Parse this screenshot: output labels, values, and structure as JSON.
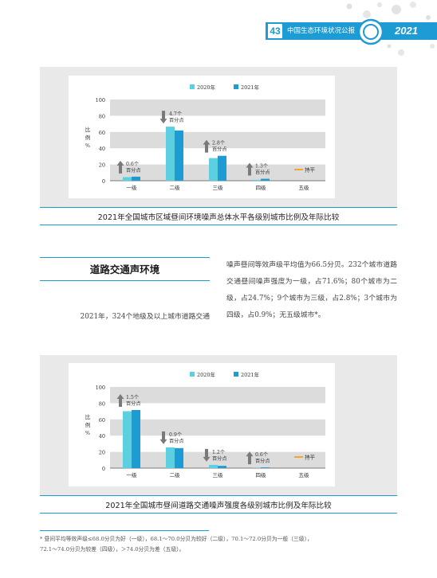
{
  "header": {
    "page_number": "43",
    "title": "中国生态环境状况公报",
    "year": "2021"
  },
  "chart1": {
    "caption": "2021年全国城市区域昼间环境噪声总体水平各级别城市比例及年际比较",
    "chart_data": {
      "type": "bar",
      "categories": [
        "一级",
        "二级",
        "三级",
        "四级",
        "五级"
      ],
      "series": [
        {
          "name": "2020年",
          "values": [
            4.4,
            66.6,
            27.9,
            1.1,
            0.0
          ]
        },
        {
          "name": "2021年",
          "values": [
            5.0,
            61.9,
            30.7,
            2.4,
            0.0
          ]
        }
      ],
      "ylabel": "比例%",
      "ylim": [
        0,
        100
      ],
      "yticks": [
        0,
        20,
        40,
        60,
        80,
        100
      ],
      "annotations": [
        {
          "category": "一级",
          "direction": "up",
          "line1": "0.6个",
          "line2": "百分点"
        },
        {
          "category": "二级",
          "direction": "down",
          "line1": "4.7个",
          "line2": "百分点"
        },
        {
          "category": "三级",
          "direction": "up",
          "line1": "2.8个",
          "line2": "百分点"
        },
        {
          "category": "四级",
          "direction": "up",
          "line1": "1.3个",
          "line2": "百分点"
        },
        {
          "category": "五级",
          "direction": "flat",
          "line1": "持平",
          "line2": ""
        }
      ],
      "grid": "alternating horizontal bands",
      "legend": "top-center"
    }
  },
  "section": {
    "title": "道路交通声环境",
    "para_left": "2021年，324个地级及以上城市道路交通",
    "para_right": "噪声昼间等效声级平均值为66.5分贝。232个城市道路交通昼间噪声强度为一级，占71.6%；80个城市为二级，占24.7%；9个城市为三级，占2.8%；3个城市为四级，占0.9%；无五级城市*。"
  },
  "chart2": {
    "caption": "2021年全国城市昼间道路交通噪声强度各级别城市比例及年际比较",
    "chart_data": {
      "type": "bar",
      "categories": [
        "一级",
        "二级",
        "三级",
        "四级",
        "五级"
      ],
      "series": [
        {
          "name": "2020年",
          "values": [
            70.1,
            25.6,
            4.0,
            0.3,
            0.0
          ]
        },
        {
          "name": "2021年",
          "values": [
            71.6,
            24.7,
            2.8,
            0.9,
            0.0
          ]
        }
      ],
      "ylabel": "比例%",
      "ylim": [
        0,
        100
      ],
      "yticks": [
        0,
        20,
        40,
        60,
        80,
        100
      ],
      "annotations": [
        {
          "category": "一级",
          "direction": "up",
          "line1": "1.5个",
          "line2": "百分点"
        },
        {
          "category": "二级",
          "direction": "down",
          "line1": "0.9个",
          "line2": "百分点"
        },
        {
          "category": "三级",
          "direction": "down",
          "line1": "1.2个",
          "line2": "百分点"
        },
        {
          "category": "四级",
          "direction": "up",
          "line1": "0.6个",
          "line2": "百分点"
        },
        {
          "category": "五级",
          "direction": "flat",
          "line1": "持平",
          "line2": ""
        }
      ],
      "grid": "alternating horizontal bands",
      "legend": "top-center"
    }
  },
  "footnote": {
    "line1": "* 昼间平均等效声级≤68.0分贝为好（一级），68.1～70.0分贝为较好（二级），70.1～72.0分贝为一般（三级），",
    "line2": "72.1～74.0分贝为较差（四级），＞74.0分贝为差（五级）。"
  },
  "colors": {
    "accent": "#1d9bd3",
    "series_2020": "#5ccfe0",
    "series_2021": "#1d9bd3",
    "arrow": "#7a7a7a",
    "flat": "#f5a623",
    "band": "#dcdcdc"
  }
}
